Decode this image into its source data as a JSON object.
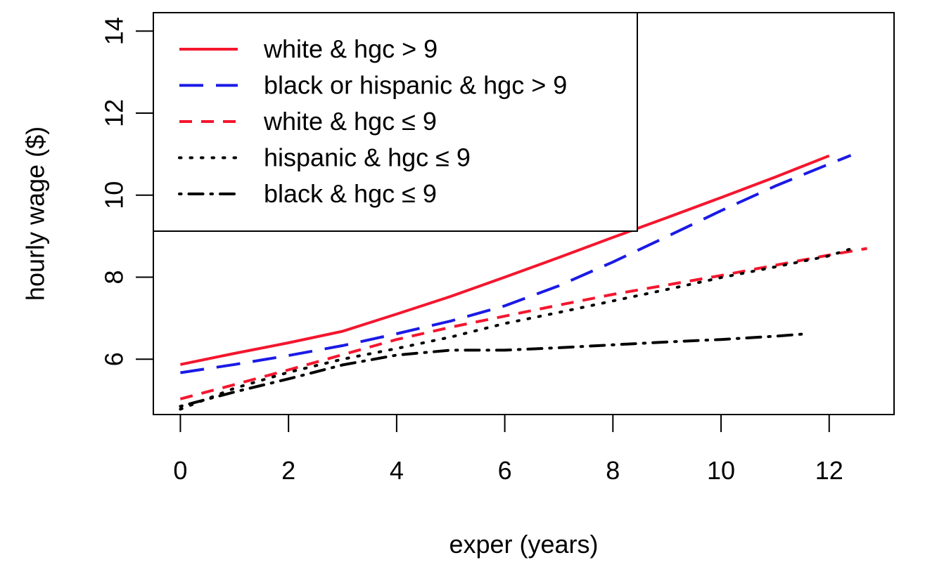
{
  "chart_data": {
    "type": "line",
    "title": "",
    "xlabel": "exper (years)",
    "ylabel": "hourly wage ($)",
    "xlim": [
      -0.5,
      13.2
    ],
    "ylim": [
      4.65,
      14.45
    ],
    "xticks": [
      "0",
      "2",
      "4",
      "6",
      "8",
      "10",
      "12"
    ],
    "yticks": [
      "6",
      "8",
      "10",
      "12",
      "14"
    ],
    "grid": false,
    "legend_position": "top-left",
    "series": [
      {
        "name": "white & hgc > 9",
        "color": "#f4162e",
        "dash": "solid",
        "x": [
          0,
          1,
          2,
          3,
          4,
          5,
          6,
          7,
          8,
          9,
          10,
          11,
          12
        ],
        "y": [
          5.87,
          6.14,
          6.4,
          6.68,
          7.1,
          7.53,
          8.0,
          8.48,
          8.97,
          9.45,
          9.94,
          10.44,
          10.96
        ]
      },
      {
        "name": "black or hispanic & hgc > 9",
        "color": "#1a1ae6",
        "dash": "long",
        "x": [
          0,
          1,
          2,
          3,
          4,
          5,
          6,
          7,
          8,
          9,
          10,
          11,
          12,
          12.4
        ],
        "y": [
          5.67,
          5.87,
          6.09,
          6.33,
          6.62,
          6.93,
          7.3,
          7.79,
          8.37,
          8.99,
          9.62,
          10.22,
          10.76,
          10.97
        ]
      },
      {
        "name": "white & hgc ≤ 9",
        "color": "#f4162e",
        "dash": "short",
        "x": [
          0,
          1,
          2,
          3,
          4,
          5,
          6,
          7,
          8,
          9,
          10,
          11,
          12,
          12.7
        ],
        "y": [
          5.03,
          5.38,
          5.74,
          6.11,
          6.48,
          6.78,
          7.05,
          7.32,
          7.58,
          7.81,
          8.04,
          8.29,
          8.54,
          8.7
        ]
      },
      {
        "name": "hispanic & hgc ≤ 9",
        "color": "#000000",
        "dash": "dotted",
        "x": [
          0,
          1,
          2,
          3,
          4,
          5,
          6,
          7,
          8,
          9,
          10,
          11,
          12,
          12.4
        ],
        "y": [
          4.78,
          5.29,
          5.68,
          6.0,
          6.26,
          6.54,
          6.87,
          7.14,
          7.42,
          7.7,
          7.99,
          8.25,
          8.52,
          8.69
        ]
      },
      {
        "name": "black & hgc ≤ 9",
        "color": "#000000",
        "dash": "dotdash",
        "x": [
          0,
          1,
          2,
          3,
          4,
          5,
          6,
          7,
          8,
          9,
          10,
          11,
          11.6
        ],
        "y": [
          4.85,
          5.2,
          5.52,
          5.86,
          6.1,
          6.22,
          6.22,
          6.28,
          6.35,
          6.42,
          6.48,
          6.56,
          6.62
        ]
      }
    ]
  }
}
